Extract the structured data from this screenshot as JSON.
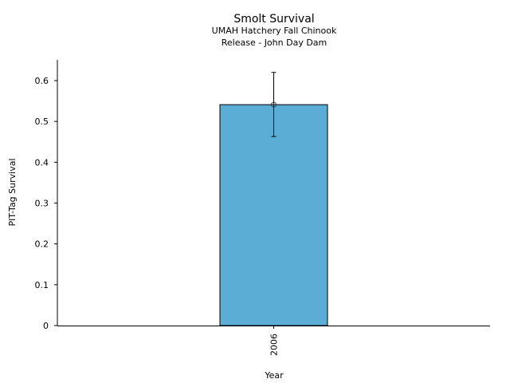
{
  "chart_data": {
    "type": "bar",
    "title": "Smolt Survival",
    "subtitle": [
      "UMAH Hatchery Fall Chinook",
      "Release - John Day Dam"
    ],
    "xlabel": "Year",
    "ylabel": "PIT-Tag Survival",
    "categories": [
      "2006"
    ],
    "values": [
      0.541
    ],
    "error_low": [
      0.463
    ],
    "error_high": [
      0.62
    ],
    "ylim": [
      0,
      0.65
    ],
    "yticks": [
      "0",
      "0.1",
      "0.2",
      "0.3",
      "0.4",
      "0.5",
      "0.6"
    ],
    "grid": false,
    "bar_color": "#5badd6"
  }
}
